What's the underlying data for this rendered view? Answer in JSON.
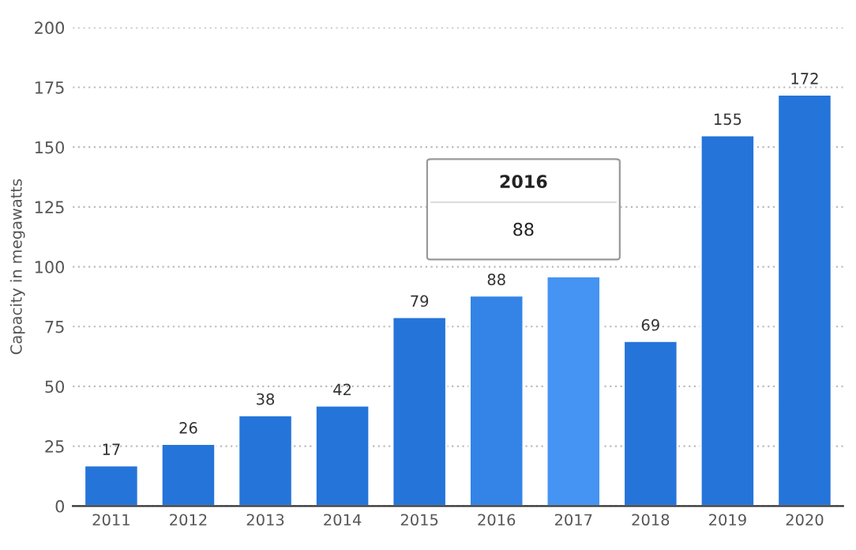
{
  "chart_data": {
    "type": "bar",
    "ylabel": "Capacity in megawatts",
    "categories": [
      "2011",
      "2012",
      "2013",
      "2014",
      "2015",
      "2016",
      "2017",
      "2018",
      "2019",
      "2020"
    ],
    "values": [
      17,
      26,
      38,
      42,
      79,
      88,
      96,
      69,
      155,
      172
    ],
    "colors": [
      "#2574d9",
      "#2574d9",
      "#2574d9",
      "#2574d9",
      "#2574d9",
      "#3384e6",
      "#4593f2",
      "#2574d9",
      "#2574d9",
      "#2574d9"
    ],
    "value_labels": [
      "17",
      "26",
      "38",
      "42",
      "79",
      "88",
      null,
      "69",
      "155",
      "172"
    ],
    "ylim": [
      0,
      200
    ],
    "yticks": [
      0,
      25,
      50,
      75,
      100,
      125,
      150,
      175,
      200
    ],
    "grid": "y",
    "annotations": [
      "2016",
      "88"
    ]
  }
}
